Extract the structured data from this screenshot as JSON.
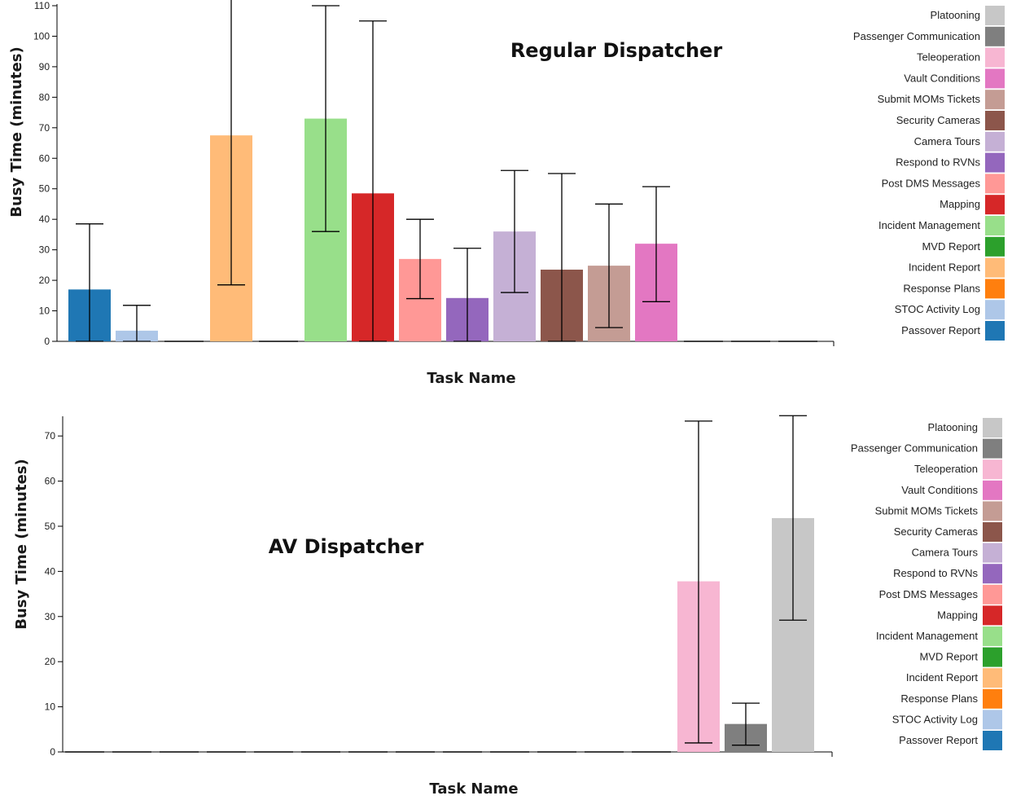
{
  "chart_data": [
    {
      "type": "bar",
      "title": "Regular Dispatcher",
      "xlabel": "Task Name",
      "ylabel": "Busy Time (minutes)",
      "ylim": [
        0,
        110
      ],
      "yticks": [
        0,
        10,
        20,
        30,
        40,
        50,
        60,
        70,
        80,
        90,
        100,
        110
      ],
      "legend_position": "right",
      "series": [
        {
          "name": "Passover Report",
          "color": "#1f77b4",
          "value": 17,
          "err_low": 0,
          "err_high": 38.5
        },
        {
          "name": "STOC Activity Log",
          "color": "#aec7e8",
          "value": 3.5,
          "err_low": 0,
          "err_high": 11.8
        },
        {
          "name": "Response Plans",
          "color": "#ff7f0e",
          "value": 0,
          "err_low": null,
          "err_high": null
        },
        {
          "name": "Incident Report",
          "color": "#ffbb78",
          "value": 67.5,
          "err_low": 18.5,
          "err_high": 116
        },
        {
          "name": "MVD Report",
          "color": "#2ca02c",
          "value": 0,
          "err_low": null,
          "err_high": null
        },
        {
          "name": "Incident Management",
          "color": "#98df8a",
          "value": 73,
          "err_low": 36,
          "err_high": 110
        },
        {
          "name": "Mapping",
          "color": "#d62728",
          "value": 48.5,
          "err_low": 0,
          "err_high": 105
        },
        {
          "name": "Post DMS Messages",
          "color": "#ff9896",
          "value": 27,
          "err_low": 14,
          "err_high": 40
        },
        {
          "name": "Respond to RVNs",
          "color": "#9467bd",
          "value": 14.2,
          "err_low": 0,
          "err_high": 30.5
        },
        {
          "name": "Camera Tours",
          "color": "#c5b0d5",
          "value": 36,
          "err_low": 16,
          "err_high": 56
        },
        {
          "name": "Security Cameras",
          "color": "#8c564b",
          "value": 23.5,
          "err_low": 0,
          "err_high": 55
        },
        {
          "name": "Submit MOMs Tickets",
          "color": "#c49c94",
          "value": 24.8,
          "err_low": 4.5,
          "err_high": 45
        },
        {
          "name": "Vault Conditions",
          "color": "#e377c2",
          "value": 32,
          "err_low": 13,
          "err_high": 50.7
        },
        {
          "name": "Teleoperation",
          "color": "#f7b6d2",
          "value": 0,
          "err_low": null,
          "err_high": null
        },
        {
          "name": "Passenger Communication",
          "color": "#7f7f7f",
          "value": 0,
          "err_low": null,
          "err_high": null
        },
        {
          "name": "Platooning",
          "color": "#c7c7c7",
          "value": 0,
          "err_low": null,
          "err_high": null
        }
      ]
    },
    {
      "type": "bar",
      "title": "AV Dispatcher",
      "xlabel": "Task Name",
      "ylabel": "Busy Time (minutes)",
      "ylim": [
        0,
        74
      ],
      "yticks": [
        0,
        10,
        20,
        30,
        40,
        50,
        60,
        70
      ],
      "legend_position": "right",
      "series": [
        {
          "name": "Passover Report",
          "color": "#1f77b4",
          "value": 0,
          "err_low": null,
          "err_high": null
        },
        {
          "name": "STOC Activity Log",
          "color": "#aec7e8",
          "value": 0,
          "err_low": null,
          "err_high": null
        },
        {
          "name": "Response Plans",
          "color": "#ff7f0e",
          "value": 0,
          "err_low": null,
          "err_high": null
        },
        {
          "name": "Incident Report",
          "color": "#ffbb78",
          "value": 0,
          "err_low": null,
          "err_high": null
        },
        {
          "name": "MVD Report",
          "color": "#2ca02c",
          "value": 0,
          "err_low": null,
          "err_high": null
        },
        {
          "name": "Incident Management",
          "color": "#98df8a",
          "value": 0,
          "err_low": null,
          "err_high": null
        },
        {
          "name": "Mapping",
          "color": "#d62728",
          "value": 0,
          "err_low": null,
          "err_high": null
        },
        {
          "name": "Post DMS Messages",
          "color": "#ff9896",
          "value": 0,
          "err_low": null,
          "err_high": null
        },
        {
          "name": "Respond to RVNs",
          "color": "#9467bd",
          "value": 0,
          "err_low": null,
          "err_high": null
        },
        {
          "name": "Camera Tours",
          "color": "#c5b0d5",
          "value": 0,
          "err_low": null,
          "err_high": null
        },
        {
          "name": "Security Cameras",
          "color": "#8c564b",
          "value": 0,
          "err_low": null,
          "err_high": null
        },
        {
          "name": "Submit MOMs Tickets",
          "color": "#c49c94",
          "value": 0,
          "err_low": null,
          "err_high": null
        },
        {
          "name": "Vault Conditions",
          "color": "#e377c2",
          "value": 0,
          "err_low": null,
          "err_high": null
        },
        {
          "name": "Teleoperation",
          "color": "#f7b6d2",
          "value": 37.8,
          "err_low": 2,
          "err_high": 73.3
        },
        {
          "name": "Passenger Communication",
          "color": "#7f7f7f",
          "value": 6.2,
          "err_low": 1.5,
          "err_high": 10.8
        },
        {
          "name": "Platooning",
          "color": "#c7c7c7",
          "value": 51.8,
          "err_low": 29.2,
          "err_high": 74.5
        }
      ]
    }
  ]
}
